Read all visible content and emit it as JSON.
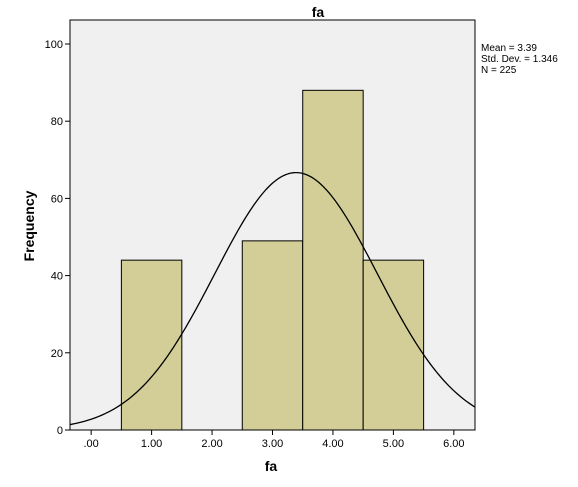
{
  "chart_data": {
    "type": "bar",
    "title": "fa",
    "xlabel": "fa",
    "ylabel": "Frequency",
    "xlim": [
      -0.35,
      6.35
    ],
    "ylim": [
      0,
      100
    ],
    "x_ticks": [
      0,
      1,
      2,
      3,
      4,
      5,
      6
    ],
    "x_tick_labels": [
      ".00",
      "1.00",
      "2.00",
      "3.00",
      "4.00",
      "5.00",
      "6.00"
    ],
    "y_ticks": [
      0,
      20,
      40,
      60,
      80,
      100
    ],
    "y_tick_labels": [
      "0",
      "20",
      "40",
      "60",
      "80",
      "100"
    ],
    "bins": [
      {
        "x0": 0.5,
        "x1": 1.5,
        "value": 44
      },
      {
        "x0": 2.5,
        "x1": 3.5,
        "value": 49
      },
      {
        "x0": 3.5,
        "x1": 4.5,
        "value": 88
      },
      {
        "x0": 4.5,
        "x1": 5.5,
        "value": 44
      }
    ],
    "normal_curve": {
      "mean": 3.39,
      "std": 1.346,
      "n": 225,
      "bin_width": 1
    },
    "stats": {
      "mean": "Mean = 3.39",
      "std": "Std. Dev. = 1.346",
      "n": "N = 225"
    },
    "grid": false,
    "legend": "none",
    "colors": {
      "plot_background": "#f0f0f0",
      "bar_fill": "#d3ce97",
      "bar_stroke": "#000000",
      "curve": "#000000"
    }
  }
}
